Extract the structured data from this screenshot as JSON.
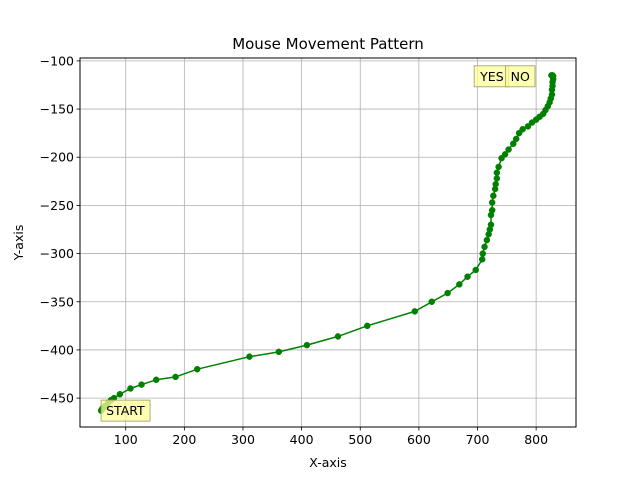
{
  "chart_data": {
    "type": "line",
    "title": "Mouse Movement Pattern",
    "xlabel": "X-axis",
    "ylabel": "Y-axis",
    "xlim": [
      22,
      868
    ],
    "ylim": [
      -480,
      -97
    ],
    "xticks": [
      100,
      200,
      300,
      400,
      500,
      600,
      700,
      800
    ],
    "yticks": [
      -100,
      -150,
      -200,
      -250,
      -300,
      -350,
      -400,
      -450
    ],
    "grid": true,
    "series": [
      {
        "color": "#008000",
        "marker": "circle",
        "points": [
          [
            58,
            -463
          ],
          [
            60,
            -461
          ],
          [
            62,
            -460
          ],
          [
            65,
            -458
          ],
          [
            70,
            -455
          ],
          [
            75,
            -452
          ],
          [
            80,
            -450
          ],
          [
            90,
            -446
          ],
          [
            108,
            -440
          ],
          [
            127,
            -436
          ],
          [
            152,
            -431
          ],
          [
            185,
            -428
          ],
          [
            222,
            -420
          ],
          [
            311,
            -407
          ],
          [
            361,
            -402
          ],
          [
            409,
            -395
          ],
          [
            462,
            -386
          ],
          [
            512,
            -375
          ],
          [
            593,
            -360
          ],
          [
            622,
            -350
          ],
          [
            649,
            -341
          ],
          [
            669,
            -332
          ],
          [
            683,
            -324
          ],
          [
            697,
            -317
          ],
          [
            708,
            -306
          ],
          [
            709,
            -300
          ],
          [
            712,
            -293
          ],
          [
            716,
            -286
          ],
          [
            719,
            -280
          ],
          [
            721,
            -275
          ],
          [
            723,
            -270
          ],
          [
            723,
            -260
          ],
          [
            725,
            -255
          ],
          [
            725,
            -247
          ],
          [
            727,
            -240
          ],
          [
            730,
            -233
          ],
          [
            731,
            -228
          ],
          [
            733,
            -222
          ],
          [
            733,
            -216
          ],
          [
            736,
            -210
          ],
          [
            741,
            -201
          ],
          [
            747,
            -197
          ],
          [
            753,
            -192
          ],
          [
            761,
            -186
          ],
          [
            766,
            -181
          ],
          [
            771,
            -175
          ],
          [
            777,
            -171
          ],
          [
            786,
            -168
          ],
          [
            793,
            -164
          ],
          [
            800,
            -161
          ],
          [
            806,
            -158
          ],
          [
            812,
            -155
          ],
          [
            816,
            -151
          ],
          [
            820,
            -147
          ],
          [
            823,
            -143
          ],
          [
            825,
            -139
          ],
          [
            827,
            -135
          ],
          [
            827,
            -130
          ],
          [
            828,
            -126
          ],
          [
            828,
            -122
          ],
          [
            829,
            -119
          ],
          [
            829,
            -116
          ],
          [
            828,
            -115
          ],
          [
            826,
            -115
          ]
        ]
      }
    ],
    "annotations": [
      {
        "text": "START",
        "x": 58,
        "y": -463
      },
      {
        "text": "YES",
        "x": 696,
        "y": -116
      },
      {
        "text": "NO",
        "x": 748,
        "y": -116
      }
    ],
    "annotation_fill": "#ffff99"
  }
}
